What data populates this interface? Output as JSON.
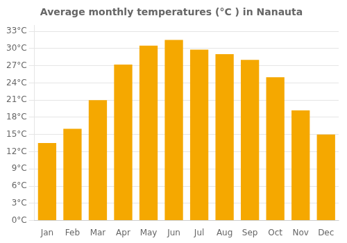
{
  "chart_data": {
    "type": "bar",
    "title": "Average monthly temperatures (°C ) in Nanauta",
    "categories": [
      "Jan",
      "Feb",
      "Mar",
      "Apr",
      "May",
      "Jun",
      "Jul",
      "Aug",
      "Sep",
      "Oct",
      "Nov",
      "Dec"
    ],
    "values": [
      13.5,
      16.0,
      21.0,
      27.2,
      30.5,
      31.5,
      29.8,
      29.0,
      28.0,
      25.0,
      19.2,
      15.0
    ],
    "color": "#F5A800",
    "ylim": [
      0,
      34
    ],
    "yticks": [
      {
        "value": 0,
        "label": "0°C"
      },
      {
        "value": 3,
        "label": "3°C"
      },
      {
        "value": 6,
        "label": "6°C"
      },
      {
        "value": 9,
        "label": "9°C"
      },
      {
        "value": 12,
        "label": "12°C"
      },
      {
        "value": 15,
        "label": "15°C"
      },
      {
        "value": 18,
        "label": "18°C"
      },
      {
        "value": 21,
        "label": "21°C"
      },
      {
        "value": 24,
        "label": "24°C"
      },
      {
        "value": 27,
        "label": "27°C"
      },
      {
        "value": 30,
        "label": "30°C"
      },
      {
        "value": 33,
        "label": "33°C"
      }
    ],
    "grid": true
  }
}
